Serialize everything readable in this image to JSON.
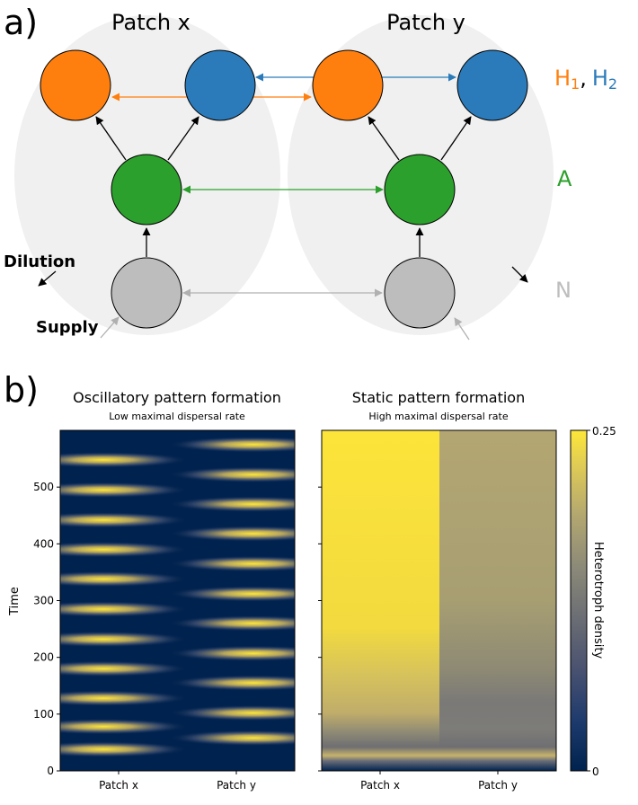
{
  "panel_a": {
    "letter": "a)",
    "patch_x_title": "Patch x",
    "patch_y_title": "Patch y",
    "legend_h1": "H",
    "legend_h1_sub": "1",
    "legend_comma": ",",
    "legend_h2": "H",
    "legend_h2_sub": "2",
    "legend_a": "A",
    "legend_n": "N",
    "dilution_label": "Dilution",
    "supply_label": "Supply",
    "colors": {
      "h1": "#ff7f0e",
      "h2": "#2b7bba",
      "a": "#2ca02c",
      "n": "#bdbdbd",
      "patch_bg": "#f0f0f0"
    }
  },
  "panel_b": {
    "letter": "b)",
    "colorbar": {
      "label": "Heterotroph density",
      "min_label": "0",
      "max_label": "0.25",
      "range": [
        0,
        0.25
      ],
      "colormap": "cividis"
    },
    "plots": [
      {
        "title": "Oscillatory pattern formation",
        "subtitle": "Low maximal dispersal rate",
        "x_ticks": [
          "Patch x",
          "Patch y"
        ]
      },
      {
        "title": "Static pattern formation",
        "subtitle": "High maximal dispersal rate",
        "x_ticks": [
          "Patch x",
          "Patch y"
        ]
      }
    ],
    "y_axis_label": "Time",
    "y_ticks": [
      "0",
      "100",
      "200",
      "300",
      "400",
      "500"
    ]
  },
  "chart_data": [
    {
      "type": "heatmap",
      "title": "Oscillatory pattern formation",
      "subtitle": "Low maximal dispersal rate",
      "xlabel": "",
      "ylabel": "Time",
      "x_categories": [
        "Patch x",
        "Patch y"
      ],
      "ylim": [
        0,
        600
      ],
      "y_ticks": [
        0,
        100,
        200,
        300,
        400,
        500
      ],
      "value_range": [
        0,
        0.25
      ],
      "patch_x_peak_times": [
        38,
        78,
        128,
        180,
        232,
        285,
        338,
        390,
        442,
        495,
        548
      ],
      "patch_y_peak_times": [
        58,
        102,
        155,
        207,
        260,
        312,
        365,
        418,
        470,
        522,
        575
      ]
    },
    {
      "type": "heatmap",
      "title": "Static pattern formation",
      "subtitle": "High maximal dispersal rate",
      "xlabel": "",
      "ylabel": "",
      "x_categories": [
        "Patch x",
        "Patch y"
      ],
      "ylim": [
        0,
        600
      ],
      "y_ticks": [
        0,
        100,
        200,
        300,
        400,
        500
      ],
      "value_range": [
        0,
        0.25
      ],
      "initial_transient_peak_time": 30,
      "steady_state": {
        "Patch x": 0.24,
        "Patch y": 0.17
      }
    }
  ]
}
